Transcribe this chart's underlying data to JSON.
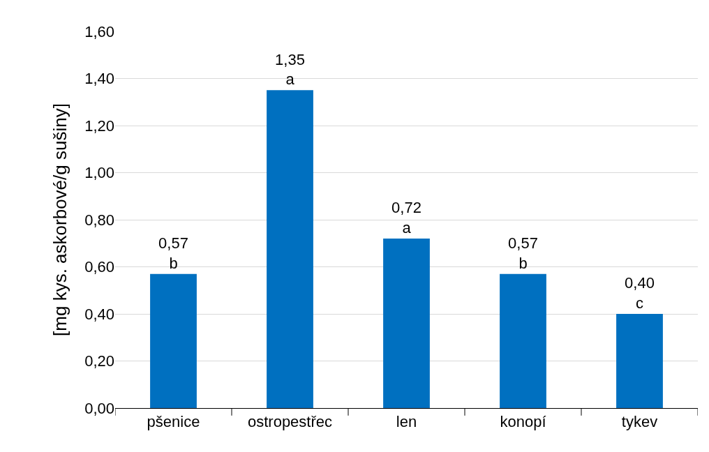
{
  "chart_data": {
    "type": "bar",
    "ylabel": "[mg kys. askorbové/g sušiny]",
    "categories": [
      "pšenice",
      "ostropestřec",
      "len",
      "konopí",
      "tykev"
    ],
    "values": [
      0.57,
      1.35,
      0.72,
      0.57,
      0.4
    ],
    "value_labels": [
      "0,57\nb",
      "1,35\na",
      "0,72\na",
      "0,57\nb",
      "0,40\nc"
    ],
    "color": "#0070c0",
    "ylim": [
      0,
      1.6
    ],
    "yticks": [
      {
        "value": 0,
        "label": "0,00"
      },
      {
        "value": 0.2,
        "label": "0,20"
      },
      {
        "value": 0.4,
        "label": "0,40"
      },
      {
        "value": 0.6,
        "label": "0,60"
      },
      {
        "value": 0.8,
        "label": "0,80"
      },
      {
        "value": 1.0,
        "label": "1,00"
      },
      {
        "value": 1.2,
        "label": "1,20"
      },
      {
        "value": 1.4,
        "label": "1,40"
      },
      {
        "value": 1.6,
        "label": "1,60"
      }
    ],
    "grid": "y"
  }
}
